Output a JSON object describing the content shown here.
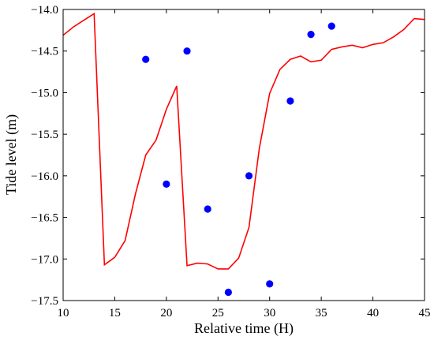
{
  "chart_data": {
    "type": "line",
    "xlabel": "Relative time (H)",
    "ylabel": "Tide level (m)",
    "xlim": [
      10,
      45
    ],
    "ylim": [
      -17.5,
      -14.0
    ],
    "xticks": [
      10,
      15,
      20,
      25,
      30,
      35,
      40,
      45
    ],
    "yticks": [
      -14.0,
      -14.5,
      -15.0,
      -15.5,
      -16.0,
      -16.5,
      -17.0,
      -17.5
    ],
    "xtick_labels": [
      "10",
      "15",
      "20",
      "25",
      "30",
      "35",
      "40",
      "45"
    ],
    "ytick_labels": [
      "−14.0",
      "−14.5",
      "−15.0",
      "−15.5",
      "−16.0",
      "−16.5",
      "−17.0",
      "−17.5"
    ],
    "grid": false,
    "series": [
      {
        "kind": "line",
        "color": "#ff0000",
        "x": [
          10,
          11,
          12,
          13,
          14,
          15,
          16,
          17,
          18,
          19,
          20,
          21,
          22,
          23,
          24,
          25,
          26,
          27,
          28,
          29,
          30,
          31,
          32,
          33,
          34,
          35,
          36,
          37,
          38,
          39,
          40,
          41,
          42,
          43,
          44,
          45
        ],
        "y": [
          -14.31,
          -14.21,
          -14.13,
          -14.05,
          -17.07,
          -16.98,
          -16.78,
          -16.22,
          -15.75,
          -15.57,
          -15.2,
          -14.92,
          -17.08,
          -17.05,
          -17.06,
          -17.12,
          -17.12,
          -16.99,
          -16.62,
          -15.67,
          -15.01,
          -14.72,
          -14.6,
          -14.56,
          -14.63,
          -14.61,
          -14.48,
          -14.45,
          -14.43,
          -14.46,
          -14.42,
          -14.4,
          -14.33,
          -14.24,
          -14.11,
          -14.12
        ]
      },
      {
        "kind": "scatter",
        "color": "#0000ff",
        "x": [
          18,
          20,
          22,
          24,
          26,
          28,
          30,
          32,
          34,
          36
        ],
        "y": [
          -14.6,
          -16.1,
          -14.5,
          -16.4,
          -17.4,
          -16.0,
          -17.3,
          -15.1,
          -14.3,
          -14.2
        ]
      }
    ]
  }
}
